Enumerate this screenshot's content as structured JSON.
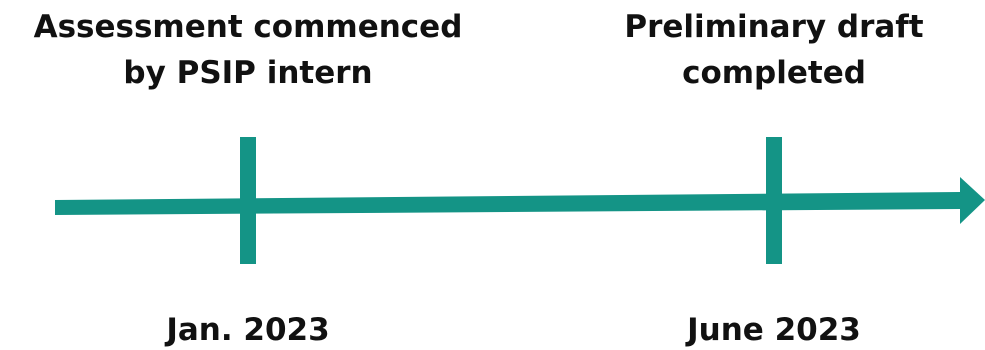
{
  "colors": {
    "line": "#149486",
    "text": "#111111"
  },
  "events": [
    {
      "title_line1": "Assessment commenced",
      "title_line2": "by PSIP intern",
      "date": "Jan. 2023"
    },
    {
      "title_line1": "Preliminary draft",
      "title_line2": "completed",
      "date": "June 2023"
    }
  ]
}
